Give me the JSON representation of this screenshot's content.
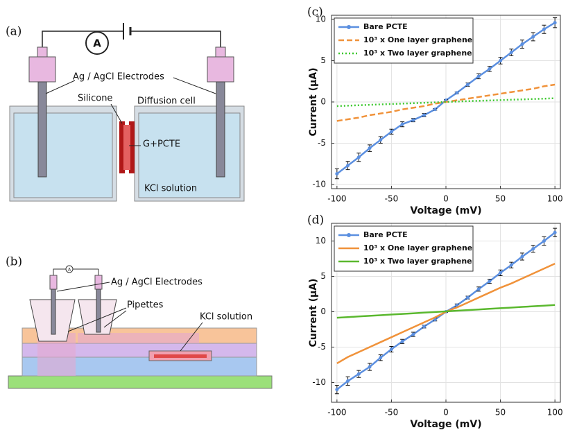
{
  "diagram_a": {
    "panel_label": "(a)",
    "ammeter": "A",
    "electrodes": "Ag / AgCl Electrodes",
    "silicone": "Silicone",
    "cell": "Diffusion cell",
    "membrane": "G+PCTE",
    "solution": "KCl solution"
  },
  "diagram_b": {
    "panel_label": "(b)",
    "ammeter": "A",
    "electrodes": "Ag / AgCl Electrodes",
    "pipettes": "Pipettes",
    "solution": "KCl solution"
  },
  "chart_data": [
    {
      "type": "line",
      "panel_label": "(c)",
      "x_label": "Voltage (mV)",
      "y_label": "Current (μA)",
      "x": [
        -100,
        -90,
        -80,
        -70,
        -60,
        -50,
        -40,
        -30,
        -20,
        -10,
        0,
        10,
        20,
        30,
        40,
        50,
        60,
        70,
        80,
        90,
        100
      ],
      "series": [
        {
          "name": "Bare PCTE",
          "color": "#5b8fe0",
          "line_style": "solid",
          "marker": true,
          "values": [
            -8.7,
            -7.7,
            -6.7,
            -5.6,
            -4.6,
            -3.6,
            -2.7,
            -2.2,
            -1.6,
            -0.9,
            0.2,
            1.1,
            2.1,
            3.1,
            4.0,
            5.0,
            6.0,
            7.0,
            7.9,
            8.8,
            9.6
          ],
          "errors": [
            0.6,
            0.5,
            0.5,
            0.4,
            0.4,
            0.3,
            0.3,
            0.2,
            0.2,
            0.1,
            0.1,
            0.1,
            0.2,
            0.3,
            0.3,
            0.4,
            0.4,
            0.5,
            0.5,
            0.5,
            0.6
          ]
        },
        {
          "name": "10³ x One layer graphene",
          "color": "#f0923a",
          "line_style": "dashed",
          "marker": false,
          "values": [
            -2.3,
            -2.1,
            -1.9,
            -1.6,
            -1.4,
            -1.2,
            -0.9,
            -0.7,
            -0.5,
            -0.2,
            0,
            0.2,
            0.4,
            0.6,
            0.8,
            1.0,
            1.2,
            1.4,
            1.6,
            1.9,
            2.1
          ]
        },
        {
          "name": "10³ x Two layer graphene",
          "color": "#3cc82e",
          "line_style": "dotted",
          "marker": false,
          "values": [
            -0.5,
            -0.45,
            -0.4,
            -0.35,
            -0.3,
            -0.25,
            -0.2,
            -0.15,
            -0.1,
            -0.05,
            0,
            0.05,
            0.1,
            0.14,
            0.18,
            0.22,
            0.27,
            0.31,
            0.36,
            0.4,
            0.45
          ]
        }
      ],
      "xlim": [
        -105,
        105
      ],
      "xticks": [
        -100,
        -50,
        0,
        50,
        100
      ],
      "ylim": [
        -10.5,
        10.5
      ],
      "yticks": [
        -10,
        -5,
        0,
        5,
        10
      ],
      "grid": true,
      "legend": "upper left"
    },
    {
      "type": "line",
      "panel_label": "(d)",
      "x_label": "Voltage (mV)",
      "y_label": "Current (μA)",
      "x": [
        -100,
        -90,
        -80,
        -70,
        -60,
        -50,
        -40,
        -30,
        -20,
        -10,
        0,
        10,
        20,
        30,
        40,
        50,
        60,
        70,
        80,
        90,
        100
      ],
      "series": [
        {
          "name": "Bare PCTE",
          "color": "#5b8fe0",
          "line_style": "solid",
          "marker": true,
          "values": [
            -11,
            -9.8,
            -8.8,
            -7.8,
            -6.5,
            -5.3,
            -4.2,
            -3.2,
            -2.1,
            -1.1,
            0,
            0.9,
            2.0,
            3.2,
            4.3,
            5.5,
            6.6,
            7.8,
            8.9,
            10.0,
            11.2
          ],
          "errors": [
            0.6,
            0.6,
            0.5,
            0.5,
            0.4,
            0.4,
            0.3,
            0.3,
            0.2,
            0.2,
            0.1,
            0.2,
            0.2,
            0.3,
            0.3,
            0.4,
            0.4,
            0.5,
            0.5,
            0.6,
            0.6
          ]
        },
        {
          "name": "10³ x One layer graphene",
          "color": "#f0923a",
          "line_style": "solid",
          "marker": false,
          "values": [
            -7.3,
            -6.4,
            -5.7,
            -5.0,
            -4.3,
            -3.6,
            -2.9,
            -2.2,
            -1.5,
            -0.8,
            0,
            0.6,
            1.3,
            2.0,
            2.7,
            3.4,
            4.0,
            4.7,
            5.4,
            6.1,
            6.8
          ]
        },
        {
          "name": "10³ x Two layer graphene",
          "color": "#5ab82e",
          "line_style": "solid",
          "marker": false,
          "values": [
            -0.85,
            -0.76,
            -0.67,
            -0.58,
            -0.49,
            -0.4,
            -0.31,
            -0.22,
            -0.13,
            -0.04,
            0.05,
            0.14,
            0.23,
            0.32,
            0.41,
            0.5,
            0.59,
            0.68,
            0.77,
            0.86,
            0.95
          ]
        }
      ],
      "xlim": [
        -105,
        105
      ],
      "xticks": [
        -100,
        -50,
        0,
        50,
        100
      ],
      "ylim": [
        -12.8,
        12.5
      ],
      "yticks": [
        -10,
        -5,
        0,
        5,
        10
      ],
      "grid": true,
      "legend": "upper left"
    }
  ]
}
